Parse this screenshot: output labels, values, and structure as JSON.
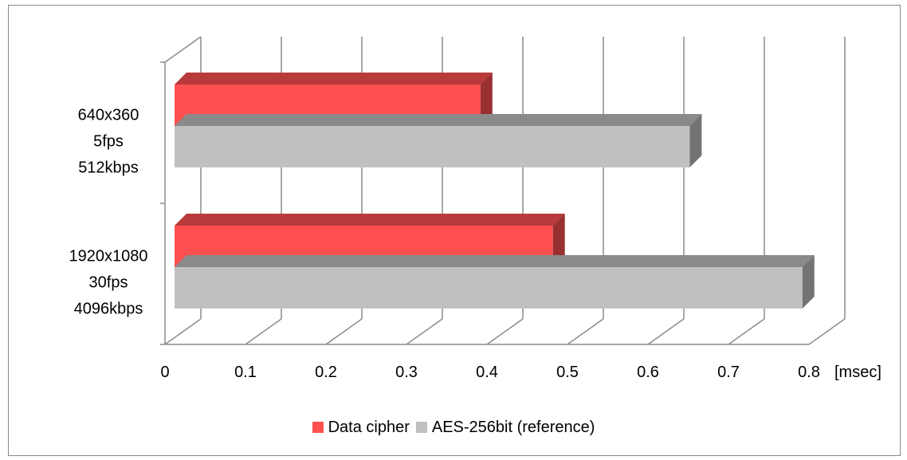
{
  "chart_data": {
    "type": "bar",
    "orientation": "horizontal",
    "style": "3d",
    "categories": [
      [
        "640x360",
        "5fps",
        "512kbps"
      ],
      [
        "1920x1080",
        "30fps",
        "4096kbps"
      ]
    ],
    "series": [
      {
        "name": "Data cipher",
        "values": [
          0.38,
          0.47
        ],
        "color": "#ff5050"
      },
      {
        "name": "AES-256bit (reference)",
        "values": [
          0.64,
          0.78
        ],
        "color": "#c0c0c0"
      }
    ],
    "x_ticks": [
      "0",
      "0.1",
      "0.2",
      "0.3",
      "0.4",
      "0.5",
      "0.6",
      "0.7",
      "0.8"
    ],
    "x_unit_label": "[msec]",
    "xlim": [
      0,
      0.8
    ],
    "grid": true,
    "legend_position": "bottom"
  }
}
